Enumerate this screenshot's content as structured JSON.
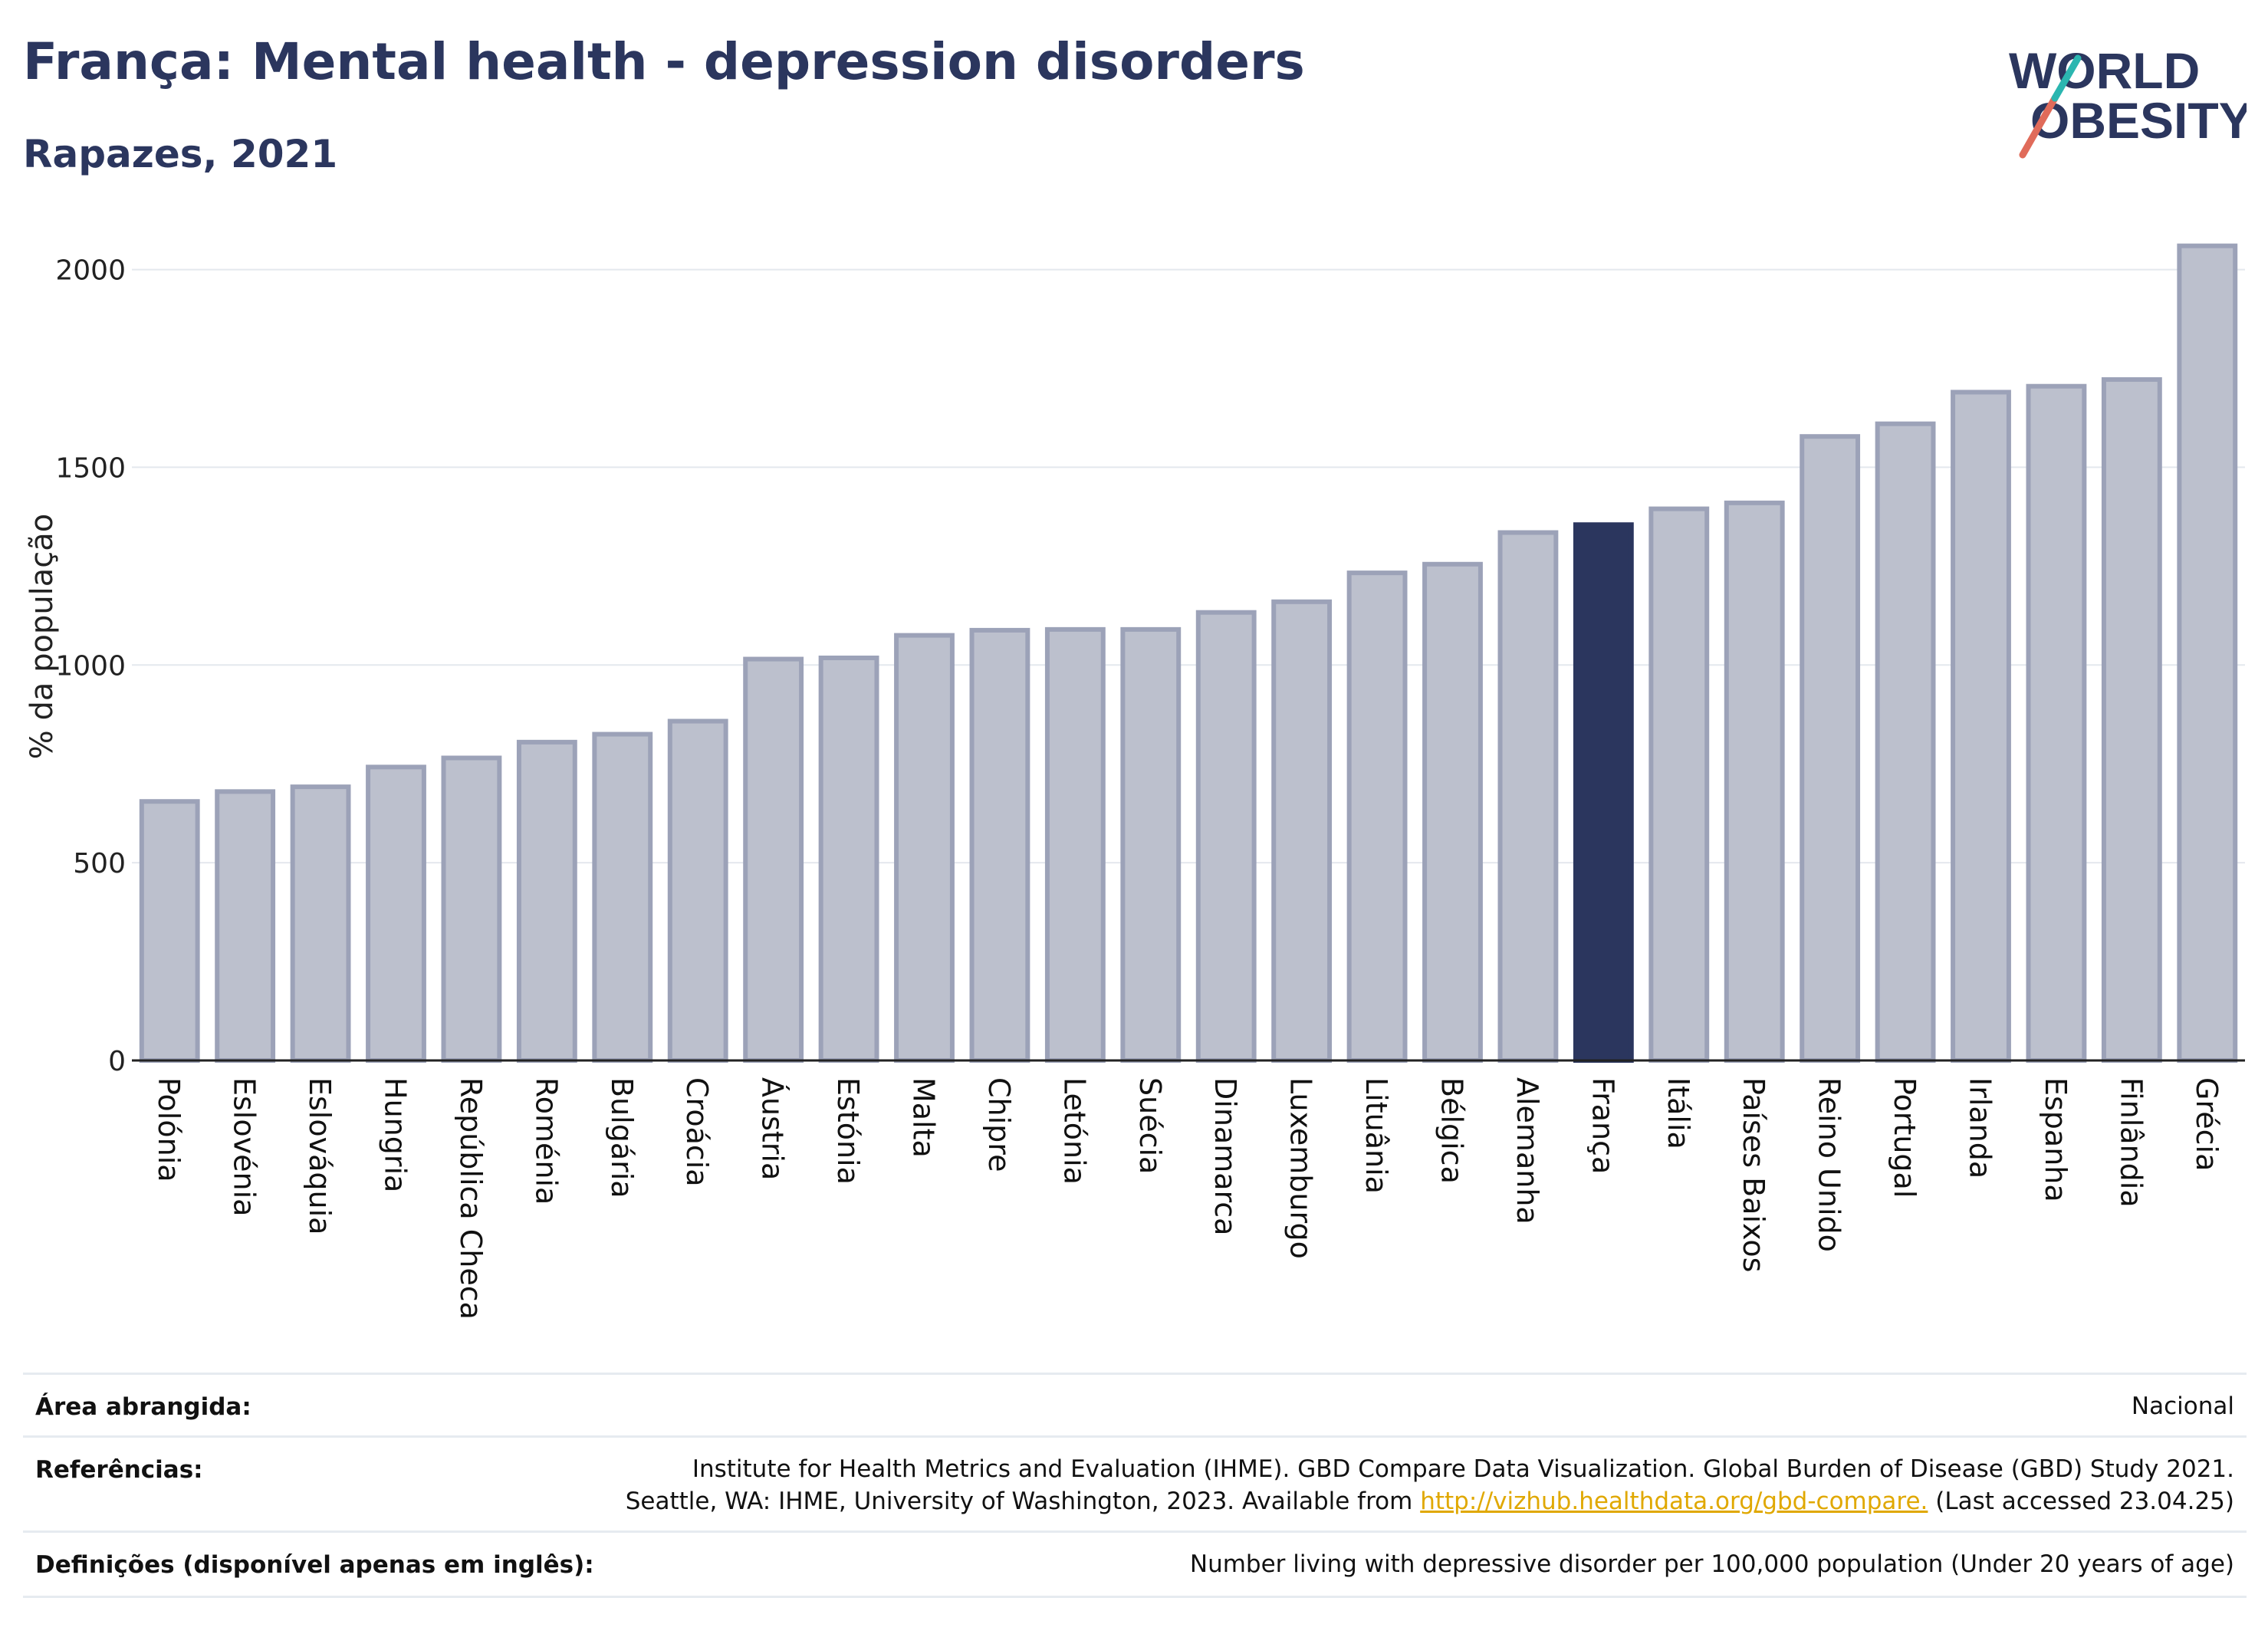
{
  "header": {
    "title": "França: Mental health - depression disorders",
    "subtitle": "Rapazes, 2021"
  },
  "logo": {
    "line1": "WORLD",
    "line2": "OBESITY"
  },
  "colors": {
    "highlight": "#2b365e",
    "bar": "#bcc0cd",
    "bar_stroke": "#9ca2b8",
    "grid": "#e4e8ee",
    "title": "#2b365e",
    "link": "#e0a800"
  },
  "chart_data": {
    "type": "bar",
    "ylabel": "% da população",
    "ylim": [
      0,
      2100
    ],
    "yticks": [
      0,
      500,
      1000,
      1500,
      2000
    ],
    "grid": true,
    "highlight": "França",
    "categories": [
      "Polónia",
      "Eslovénia",
      "Eslováquia",
      "Hungria",
      "República Checa",
      "Roménia",
      "Bulgária",
      "Croácia",
      "Áustria",
      "Estónia",
      "Malta",
      "Chipre",
      "Letónia",
      "Suécia",
      "Dinamarca",
      "Luxemburgo",
      "Lituânia",
      "Bélgica",
      "Alemanha",
      "França",
      "Itália",
      "Países Baixos",
      "Reino Unido",
      "Portugal",
      "Irlanda",
      "Espanha",
      "Finlândia",
      "Grécia"
    ],
    "values": [
      655,
      680,
      692,
      742,
      765,
      805,
      825,
      858,
      1015,
      1018,
      1075,
      1088,
      1090,
      1090,
      1133,
      1160,
      1233,
      1255,
      1335,
      1355,
      1395,
      1410,
      1578,
      1610,
      1690,
      1705,
      1722,
      2060
    ]
  },
  "footer": {
    "area_label": "Área abrangida:",
    "area_value": "Nacional",
    "ref_label": "Referências:",
    "ref_line1": "Institute for Health Metrics and Evaluation (IHME). GBD Compare Data Visualization. Global Burden of Disease (GBD) Study 2021.",
    "ref_line2_pre": "Seattle, WA: IHME, University of Washington, 2023. Available from",
    "ref_link": "http://vizhub.healthdata.org/gbd-compare.",
    "ref_line2_post": "(Last accessed 23.04.25)",
    "def_label": "Definições (disponível apenas em inglês):",
    "def_value": "Number living with depressive disorder per 100,000 population (Under 20 years of age)"
  }
}
